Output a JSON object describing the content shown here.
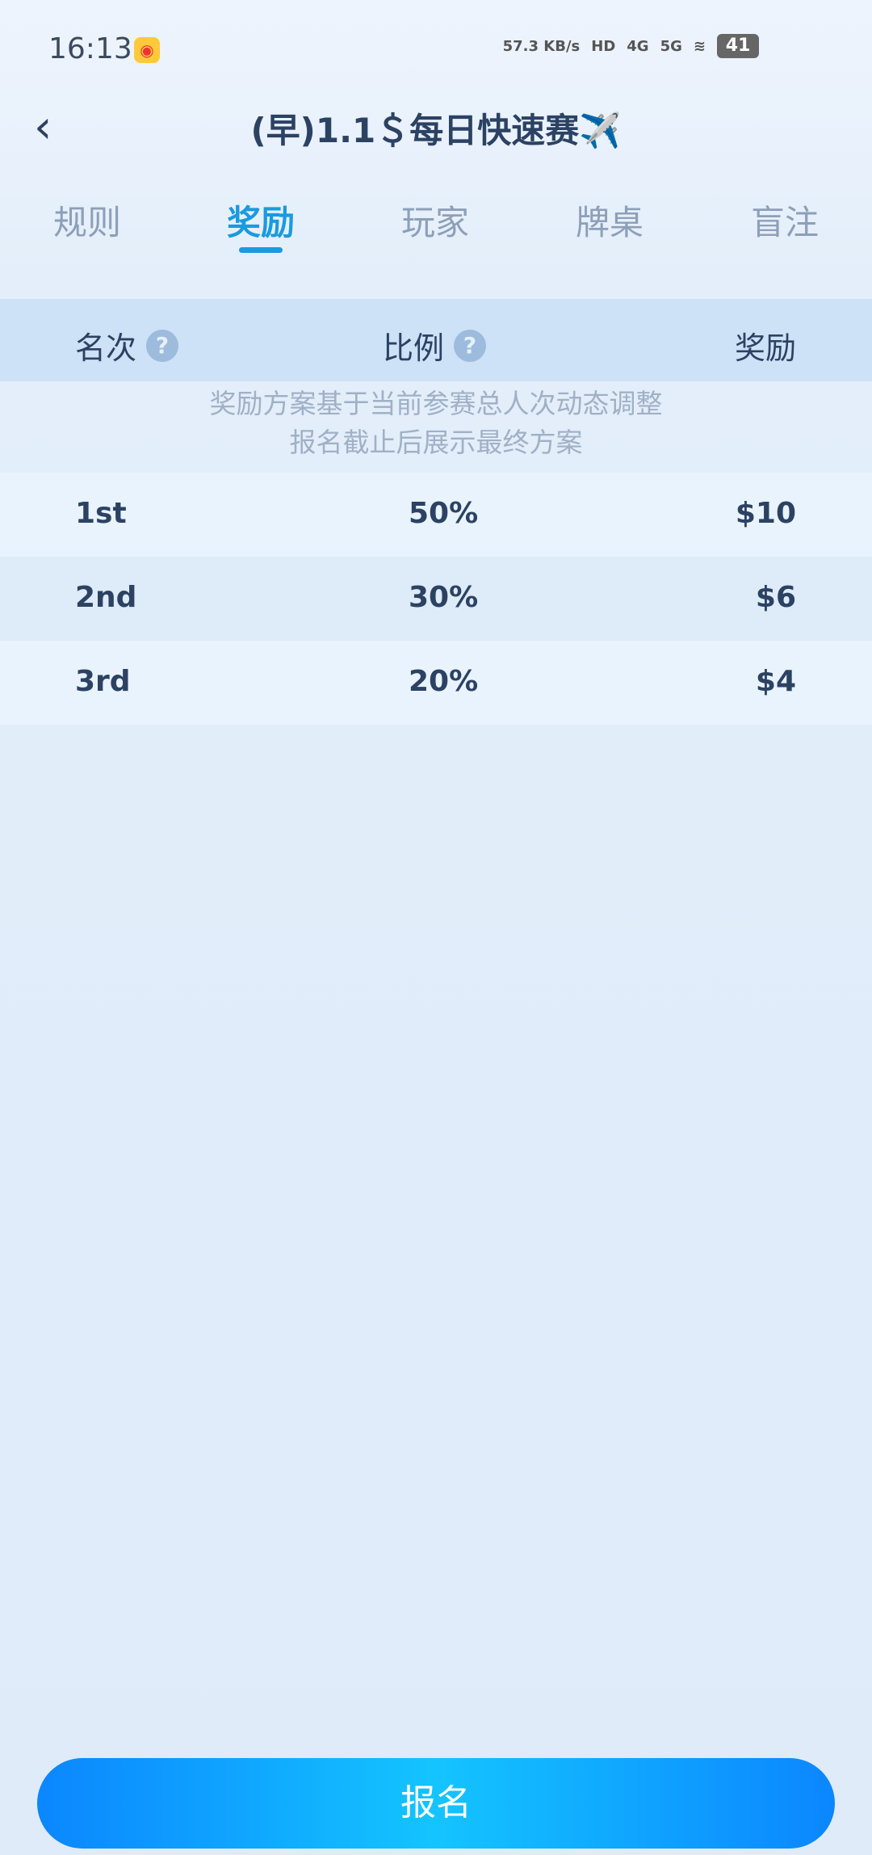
{
  "status_bar": {
    "time": "16:13",
    "net_speed": "57.3 KB/s",
    "hd": "HD",
    "net1": "4G",
    "net2": "5G",
    "battery": "41"
  },
  "header": {
    "title": "(早)1.1＄每日快速赛✈️"
  },
  "tabs": [
    {
      "label": "规则"
    },
    {
      "label": "奖励"
    },
    {
      "label": "玩家"
    },
    {
      "label": "牌桌"
    },
    {
      "label": "盲注"
    }
  ],
  "active_tab": "奖励",
  "table": {
    "headers": [
      "名次",
      "比例",
      "奖励"
    ],
    "note_line1": "奖励方案基于当前参赛总人次动态调整",
    "note_line2": "报名截止后展示最终方案",
    "rows": [
      {
        "rank": "1st",
        "ratio": "50%",
        "prize": "$10"
      },
      {
        "rank": "2nd",
        "ratio": "30%",
        "prize": "$6"
      },
      {
        "rank": "3rd",
        "ratio": "20%",
        "prize": "$4"
      }
    ]
  },
  "register_button": "报名",
  "colors": {
    "accent": "#1a9ae0",
    "header_bg": "#cde1f7",
    "button": "#0b86ff"
  }
}
